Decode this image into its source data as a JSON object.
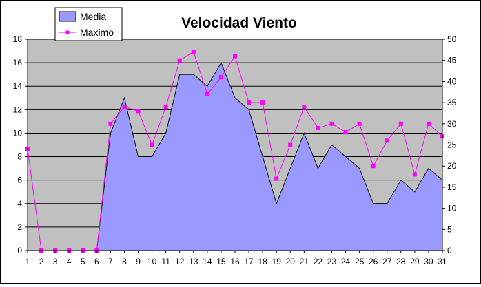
{
  "chart_data": {
    "type": "area",
    "title": "Velocidad Viento",
    "xlabel": "",
    "ylabel": "",
    "categories": [
      "1",
      "2",
      "3",
      "4",
      "5",
      "6",
      "7",
      "8",
      "9",
      "10",
      "11",
      "12",
      "13",
      "14",
      "15",
      "16",
      "17",
      "18",
      "19",
      "20",
      "21",
      "22",
      "23",
      "24",
      "25",
      "26",
      "27",
      "28",
      "29",
      "30",
      "31"
    ],
    "series": [
      {
        "name": "Media",
        "type": "area",
        "axis": "left",
        "color": "#9999ff",
        "values": [
          0,
          0,
          0,
          0,
          0,
          0,
          10,
          13,
          8,
          8,
          10,
          15,
          15,
          14,
          16,
          13,
          12,
          8,
          4,
          7,
          10,
          7,
          9,
          8,
          7,
          4,
          4,
          6,
          5,
          7,
          6
        ]
      },
      {
        "name": "Maximo",
        "type": "line",
        "axis": "right",
        "color": "#ff00ff",
        "values": [
          24,
          0,
          0,
          0,
          0,
          0,
          30,
          34,
          33,
          25,
          34,
          45,
          47,
          37,
          41,
          46,
          35,
          35,
          17,
          25,
          34,
          29,
          30,
          28,
          30,
          20,
          26,
          30,
          18,
          30,
          27
        ]
      }
    ],
    "y_left": {
      "min": 0,
      "max": 18,
      "ticks": [
        "0",
        "2",
        "4",
        "6",
        "8",
        "10",
        "12",
        "14",
        "16",
        "18"
      ]
    },
    "y_right": {
      "min": 0,
      "max": 50,
      "ticks": [
        "0",
        "5",
        "10",
        "15",
        "20",
        "25",
        "30",
        "35",
        "40",
        "45",
        "50"
      ]
    },
    "plot_background": "#c0c0c0",
    "gridlines": true,
    "legend_position": "top-left"
  }
}
